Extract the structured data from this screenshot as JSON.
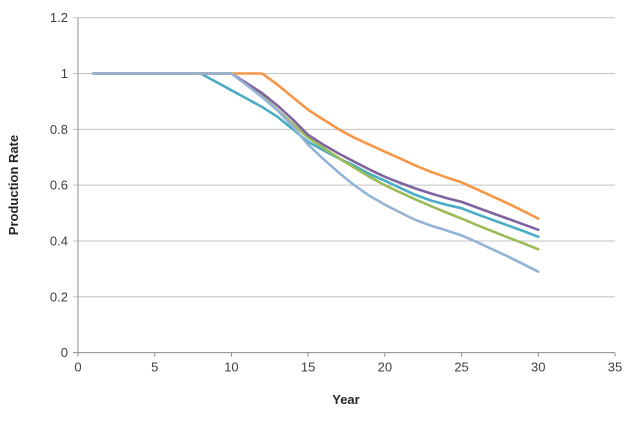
{
  "chart_data": {
    "type": "line",
    "title": "",
    "xlabel": "Year",
    "ylabel": "Production Rate",
    "xlim": [
      0,
      35
    ],
    "ylim": [
      0,
      1.2
    ],
    "x_ticks": [
      0,
      5,
      10,
      15,
      20,
      25,
      30,
      35
    ],
    "x_tick_labels": [
      "0",
      "5",
      "10",
      "15",
      "20",
      "25",
      "30",
      "35"
    ],
    "y_ticks": [
      0,
      0.2,
      0.4,
      0.6,
      0.8,
      1,
      1.2
    ],
    "y_tick_labels": [
      "0",
      "0.2",
      "0.4",
      "0.6",
      "0.8",
      "1",
      "1.2"
    ],
    "grid": "horizontal",
    "legend": "none",
    "colors": {
      "gridline": "#c3c3c3",
      "axis": "#8c8c8c",
      "tick_text": "#404040"
    },
    "x": [
      1,
      2,
      3,
      4,
      5,
      6,
      7,
      8,
      9,
      10,
      11,
      12,
      13,
      14,
      15,
      16,
      17,
      18,
      19,
      20,
      21,
      22,
      23,
      24,
      25,
      26,
      27,
      28,
      29,
      30
    ],
    "series": [
      {
        "name": "teal",
        "color": "#4BACC6",
        "plateau_until": 8,
        "end_value": 0.415,
        "values": [
          1,
          1,
          1,
          1,
          1,
          1,
          1,
          1,
          0.97,
          0.94,
          0.91,
          0.88,
          0.845,
          0.8,
          0.755,
          0.725,
          0.696,
          0.67,
          0.64,
          0.616,
          0.59,
          0.565,
          0.545,
          0.53,
          0.517,
          0.496,
          0.476,
          0.456,
          0.436,
          0.415
        ]
      },
      {
        "name": "green",
        "color": "#9BBB59",
        "plateau_until": 10,
        "end_value": 0.37,
        "values": [
          1,
          1,
          1,
          1,
          1,
          1,
          1,
          1,
          1,
          1,
          0.96,
          0.92,
          0.87,
          0.82,
          0.77,
          0.733,
          0.697,
          0.663,
          0.63,
          0.6,
          0.574,
          0.549,
          0.525,
          0.502,
          0.48,
          0.457,
          0.435,
          0.413,
          0.392,
          0.37
        ]
      },
      {
        "name": "purple",
        "color": "#8064A2",
        "plateau_until": 10,
        "end_value": 0.44,
        "values": [
          1,
          1,
          1,
          1,
          1,
          1,
          1,
          1,
          1,
          1,
          0.965,
          0.93,
          0.885,
          0.835,
          0.78,
          0.745,
          0.713,
          0.684,
          0.656,
          0.63,
          0.608,
          0.588,
          0.57,
          0.554,
          0.54,
          0.52,
          0.5,
          0.48,
          0.46,
          0.44
        ]
      },
      {
        "name": "orange",
        "color": "#F79646",
        "plateau_until": 12,
        "end_value": 0.48,
        "values": [
          1,
          1,
          1,
          1,
          1,
          1,
          1,
          1,
          1,
          1,
          1,
          1,
          0.96,
          0.915,
          0.87,
          0.835,
          0.8,
          0.77,
          0.745,
          0.72,
          0.695,
          0.67,
          0.648,
          0.628,
          0.61,
          0.585,
          0.56,
          0.535,
          0.508,
          0.48
        ]
      },
      {
        "name": "light-blue",
        "color": "#95B3D7",
        "plateau_until": 10,
        "end_value": 0.29,
        "values": [
          1,
          1,
          1,
          1,
          1,
          1,
          1,
          1,
          1,
          1,
          0.958,
          0.915,
          0.868,
          0.81,
          0.745,
          0.693,
          0.645,
          0.6,
          0.562,
          0.53,
          0.502,
          0.475,
          0.455,
          0.438,
          0.42,
          0.396,
          0.37,
          0.345,
          0.318,
          0.29
        ]
      }
    ]
  }
}
